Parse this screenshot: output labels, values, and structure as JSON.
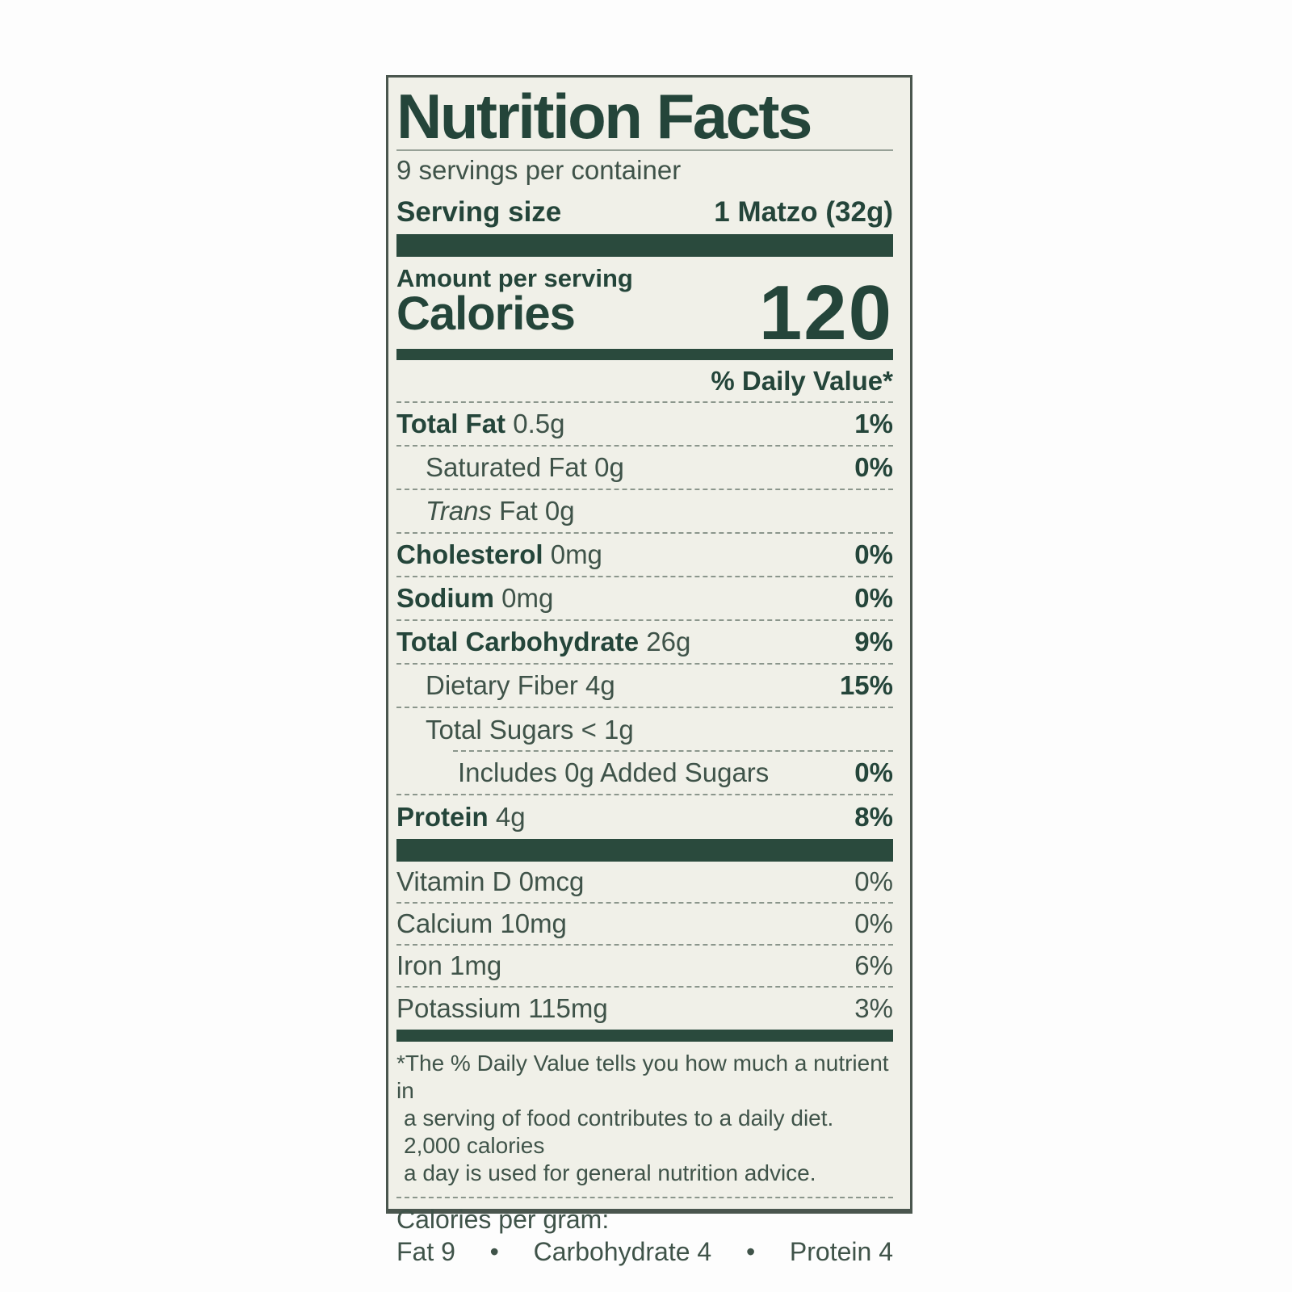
{
  "label": {
    "title": "Nutrition Facts",
    "servings_per_container": "9 servings per container",
    "serving_size": {
      "label": "Serving size",
      "value": "1 Matzo (32g)"
    },
    "amount_per_serving": "Amount per serving",
    "calories_word": "Calories",
    "calories_value": "120",
    "dv_header": "% Daily Value*",
    "rows": [
      {
        "b": "Total Fat",
        "r": " 0.5g",
        "dv": "1%"
      },
      {
        "b": "",
        "r": "Saturated Fat 0g",
        "dv": "0%"
      },
      {
        "i": "Trans",
        "r": " Fat 0g",
        "dv": ""
      },
      {
        "b": "Cholesterol",
        "r": " 0mg",
        "dv": "0%"
      },
      {
        "b": "Sodium",
        "r": " 0mg",
        "dv": "0%"
      },
      {
        "b": "Total Carbohydrate",
        "r": " 26g",
        "dv": "9%"
      },
      {
        "b": "",
        "r": "Dietary Fiber 4g",
        "dv": "15%"
      },
      {
        "b": "",
        "r": "Total Sugars < 1g",
        "dv": ""
      },
      {
        "b": "",
        "r": "Includes 0g Added Sugars",
        "dv": "0%"
      },
      {
        "b": "Protein",
        "r": " 4g",
        "dv": "8%"
      }
    ],
    "micronutrients": [
      {
        "t": "Vitamin D 0mcg",
        "dv": "0%"
      },
      {
        "t": "Calcium 10mg",
        "dv": "0%"
      },
      {
        "t": "Iron 1mg",
        "dv": "6%"
      },
      {
        "t": "Potassium 115mg",
        "dv": "3%"
      }
    ],
    "footnote": {
      "lines": [
        "*The % Daily Value tells you how much a nutrient in",
        "a serving of food contributes to a daily diet. 2,000 calories",
        "a day is used for general nutrition advice."
      ]
    },
    "calories_per_gram": {
      "heading": "Calories per gram:",
      "items": [
        "Fat 9",
        "Carbohydrate 4",
        "Protein 4"
      ],
      "bullet": "•"
    },
    "colors": {
      "background": "#f0f0e8",
      "ink_dark": "#24453a",
      "ink_regular": "#3f5349",
      "bar": "#2a4a3d",
      "hairline": "#8b968c",
      "page": "#fdfdfd"
    }
  }
}
